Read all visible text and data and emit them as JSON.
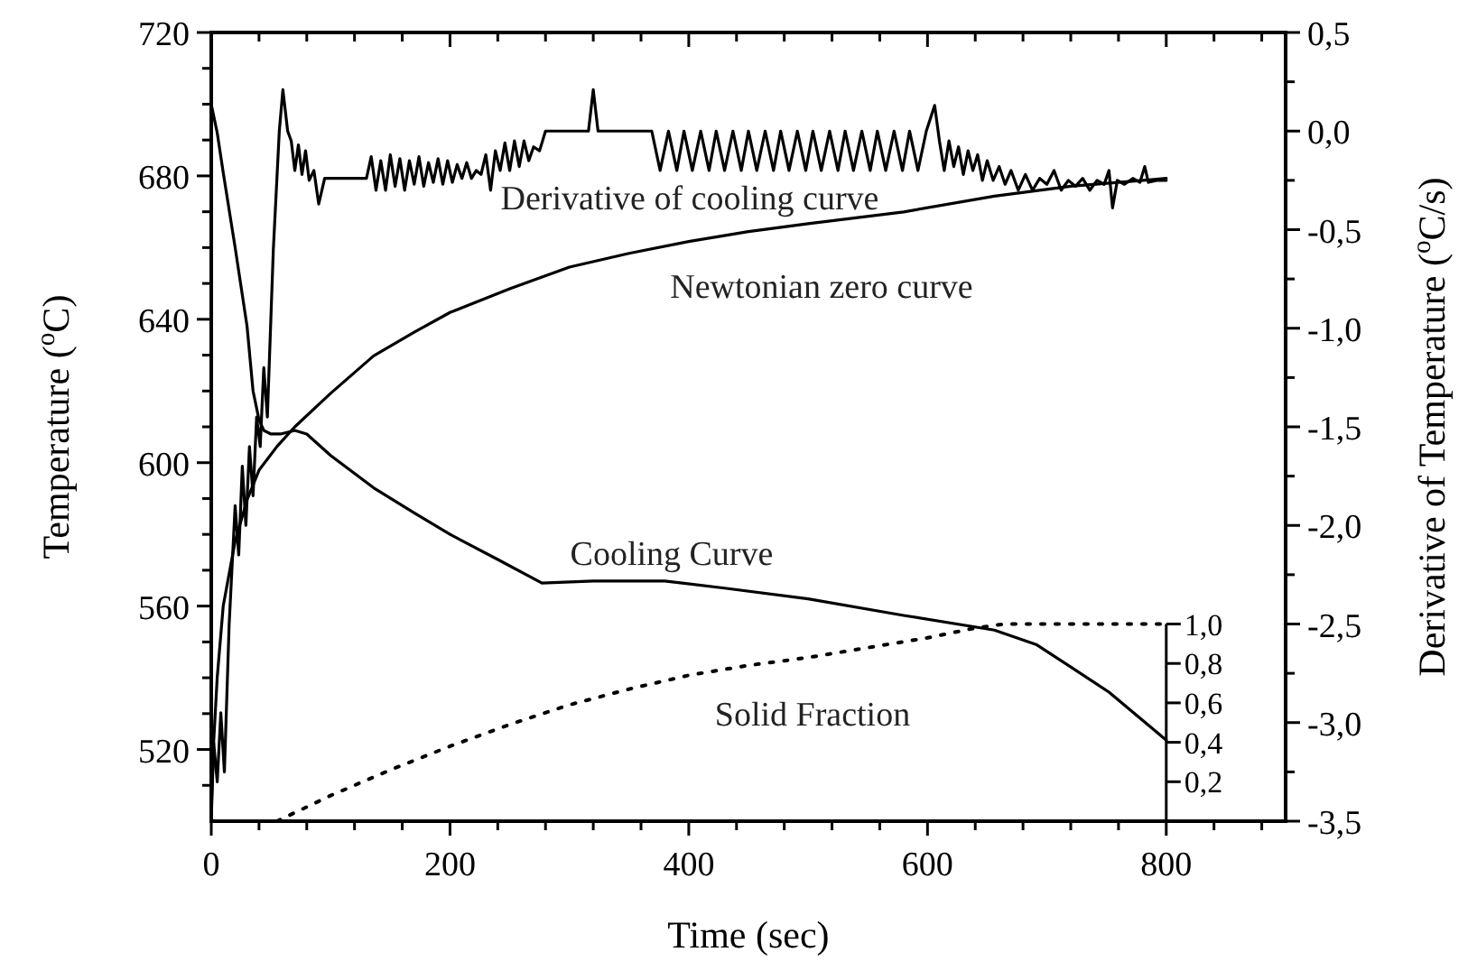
{
  "chart_data": {
    "type": "line",
    "xlabel": "Time (sec)",
    "ylabel": "Temperature ($^{o}$C)",
    "y2label": "Derivative of Temperature ($^{o}$C/s)",
    "xlim": [
      0,
      900
    ],
    "xticks": [
      0,
      {
        "value": 40,
        "label": null
      },
      {
        "value": 80,
        "label": null
      },
      {
        "value": 120,
        "label": null
      },
      {
        "value": 160,
        "label": null
      },
      200,
      {
        "value": 240,
        "label": null
      },
      {
        "value": 280,
        "label": null
      },
      {
        "value": 320,
        "label": null
      },
      {
        "value": 360,
        "label": null
      },
      400,
      {
        "value": 440,
        "label": null
      },
      {
        "value": 480,
        "label": null
      },
      {
        "value": 520,
        "label": null
      },
      {
        "value": 560,
        "label": null
      },
      600,
      {
        "value": 640,
        "label": null
      },
      {
        "value": 680,
        "label": null
      },
      {
        "value": 720,
        "label": null
      },
      {
        "value": 760,
        "label": null
      },
      800,
      {
        "value": 840,
        "label": null
      },
      {
        "value": 880,
        "label": null
      }
    ],
    "ylim": [
      500,
      720
    ],
    "yticks": [
      {
        "value": 510,
        "label": null
      },
      520,
      {
        "value": 530,
        "label": null
      },
      {
        "value": 540,
        "label": null
      },
      {
        "value": 550,
        "label": null
      },
      560,
      {
        "value": 570,
        "label": null
      },
      {
        "value": 580,
        "label": null
      },
      {
        "value": 590,
        "label": null
      },
      600,
      {
        "value": 610,
        "label": null
      },
      {
        "value": 620,
        "label": null
      },
      {
        "value": 630,
        "label": null
      },
      640,
      {
        "value": 650,
        "label": null
      },
      {
        "value": 660,
        "label": null
      },
      {
        "value": 670,
        "label": null
      },
      680,
      {
        "value": 690,
        "label": null
      },
      {
        "value": 700,
        "label": null
      },
      {
        "value": 710,
        "label": null
      },
      720
    ],
    "y2lim": [
      -3.5,
      0.5
    ],
    "y2ticks": [
      {
        "value": -3.5,
        "label": "-3,5"
      },
      {
        "value": -3.25,
        "label": null
      },
      {
        "value": -3.0,
        "label": "-3,0"
      },
      {
        "value": -2.75,
        "label": null
      },
      {
        "value": -2.5,
        "label": "-2,5"
      },
      {
        "value": -2.25,
        "label": null
      },
      {
        "value": -2.0,
        "label": "-2,0"
      },
      {
        "value": -1.75,
        "label": null
      },
      {
        "value": -1.5,
        "label": "-1,5"
      },
      {
        "value": -1.25,
        "label": null
      },
      {
        "value": -1.0,
        "label": "-1,0"
      },
      {
        "value": -0.75,
        "label": null
      },
      {
        "value": -0.5,
        "label": "-0,5"
      },
      {
        "value": -0.25,
        "label": null
      },
      {
        "value": 0.0,
        "label": "0,0"
      },
      {
        "value": 0.25,
        "label": null
      },
      {
        "value": 0.5,
        "label": "0,5"
      }
    ],
    "y3lim": [
      0,
      4
    ],
    "y3ticks": [
      {
        "value": 0.2,
        "label": "0,2"
      },
      {
        "value": 0.4,
        "label": "0,4"
      },
      {
        "value": 0.6,
        "label": "0,6"
      },
      {
        "value": 0.8,
        "label": "0,8"
      },
      {
        "value": 1.0,
        "label": "1,0"
      }
    ],
    "grid": false,
    "marker": "none",
    "series": [
      {
        "name": "Derivative of cooling curve",
        "color": "#000000",
        "axis": "y2",
        "line_style": "solid",
        "x": [
          0,
          2,
          5,
          8,
          11,
          15,
          20,
          23,
          26,
          29,
          32,
          35,
          38,
          41,
          44,
          47,
          52,
          57,
          60,
          64,
          67,
          70,
          73,
          76,
          79,
          82,
          86,
          90,
          95,
          130,
          134,
          138,
          142,
          146,
          150,
          154,
          158,
          162,
          166,
          170,
          174,
          178,
          182,
          186,
          190,
          194,
          198,
          202,
          206,
          210,
          214,
          218,
          222,
          226,
          230,
          234,
          238,
          242,
          246,
          250,
          254,
          258,
          262,
          266,
          270,
          275,
          280,
          316,
          320,
          324,
          369,
          376,
          383,
          390,
          396,
          403,
          410,
          417,
          423,
          430,
          437,
          444,
          450,
          457,
          464,
          471,
          477,
          484,
          491,
          498,
          504,
          511,
          518,
          525,
          531,
          538,
          545,
          552,
          558,
          565,
          572,
          579,
          585,
          592,
          599,
          606,
          610,
          614,
          618,
          622,
          626,
          630,
          634,
          638,
          642,
          646,
          650,
          655,
          660,
          665,
          670,
          676,
          682,
          688,
          694,
          700,
          706,
          712,
          718,
          724,
          730,
          736,
          742,
          748,
          752,
          755,
          759,
          765,
          772,
          778,
          782,
          785,
          792,
          800
        ],
        "values": [
          -3.45,
          -3.1,
          -3.3,
          -2.95,
          -3.25,
          -2.5,
          -1.9,
          -2.15,
          -1.7,
          -2.0,
          -1.6,
          -1.85,
          -1.45,
          -1.6,
          -1.2,
          -1.45,
          -0.6,
          0.0,
          0.21,
          0.0,
          -0.05,
          -0.2,
          -0.07,
          -0.22,
          -0.1,
          -0.25,
          -0.2,
          -0.37,
          -0.24,
          -0.24,
          -0.13,
          -0.3,
          -0.15,
          -0.3,
          -0.12,
          -0.28,
          -0.14,
          -0.3,
          -0.15,
          -0.27,
          -0.13,
          -0.28,
          -0.16,
          -0.26,
          -0.14,
          -0.27,
          -0.15,
          -0.26,
          -0.17,
          -0.24,
          -0.16,
          -0.24,
          -0.2,
          -0.22,
          -0.12,
          -0.3,
          -0.1,
          -0.2,
          -0.06,
          -0.2,
          -0.05,
          -0.18,
          -0.05,
          -0.15,
          -0.08,
          -0.1,
          0.0,
          0.0,
          0.21,
          0.0,
          0.0,
          -0.2,
          0.0,
          -0.2,
          0.0,
          -0.2,
          0.0,
          -0.2,
          0.0,
          -0.2,
          0.0,
          -0.2,
          0.0,
          -0.2,
          0.0,
          -0.2,
          0.0,
          -0.2,
          0.0,
          -0.2,
          0.0,
          -0.2,
          0.0,
          -0.2,
          0.0,
          -0.2,
          0.0,
          -0.2,
          0.0,
          -0.2,
          0.0,
          -0.2,
          0.0,
          -0.2,
          0.0,
          0.13,
          -0.05,
          -0.2,
          -0.05,
          -0.18,
          -0.08,
          -0.22,
          -0.1,
          -0.2,
          -0.12,
          -0.25,
          -0.15,
          -0.25,
          -0.18,
          -0.27,
          -0.2,
          -0.3,
          -0.22,
          -0.3,
          -0.24,
          -0.27,
          -0.2,
          -0.3,
          -0.25,
          -0.28,
          -0.24,
          -0.3,
          -0.25,
          -0.27,
          -0.2,
          -0.39,
          -0.25,
          -0.27,
          -0.24,
          -0.26,
          -0.18,
          -0.26,
          -0.25,
          -0.25
        ]
      },
      {
        "name": "Newtonian zero curve",
        "color": "#000000",
        "axis": "y2",
        "line_style": "solid",
        "x": [
          0,
          2,
          5,
          10,
          20,
          30,
          40,
          55,
          70,
          100,
          136,
          170,
          200,
          250,
          300,
          350,
          400,
          450,
          500,
          580,
          656,
          720,
          800
        ],
        "values": [
          -3.5,
          -3.1,
          -2.77,
          -2.41,
          -2.08,
          -1.87,
          -1.72,
          -1.6,
          -1.5,
          -1.33,
          -1.14,
          -1.02,
          -0.92,
          -0.8,
          -0.69,
          -0.62,
          -0.56,
          -0.51,
          -0.47,
          -0.41,
          -0.33,
          -0.28,
          -0.24
        ]
      },
      {
        "name": "Cooling Curve",
        "color": "#000000",
        "axis": "y",
        "line_style": "solid",
        "x": [
          0,
          5,
          10,
          20,
          30,
          35,
          40,
          44,
          50,
          58,
          70,
          80,
          100,
          136,
          170,
          200,
          240,
          277,
          320,
          380,
          430,
          500,
          580,
          656,
          691,
          720,
          752,
          800
        ],
        "values": [
          700,
          692,
          681,
          660,
          638,
          620,
          612,
          609,
          608,
          608,
          609,
          608,
          602,
          593,
          586,
          580,
          573,
          566.4,
          567,
          567,
          565,
          562,
          557.4,
          553.3,
          549.3,
          543,
          536,
          522.6
        ]
      },
      {
        "name": "Solid Fraction",
        "color": "#000000",
        "axis": "y3",
        "line_style": "dotted",
        "x": [
          55,
          100,
          150,
          200,
          250,
          300,
          350,
          400,
          450,
          500,
          550,
          600,
          640,
          665,
          800
        ],
        "values": [
          0,
          0.13,
          0.26,
          0.38,
          0.49,
          0.59,
          0.67,
          0.74,
          0.79,
          0.83,
          0.88,
          0.93,
          0.98,
          1.0,
          1.0
        ]
      }
    ]
  }
}
